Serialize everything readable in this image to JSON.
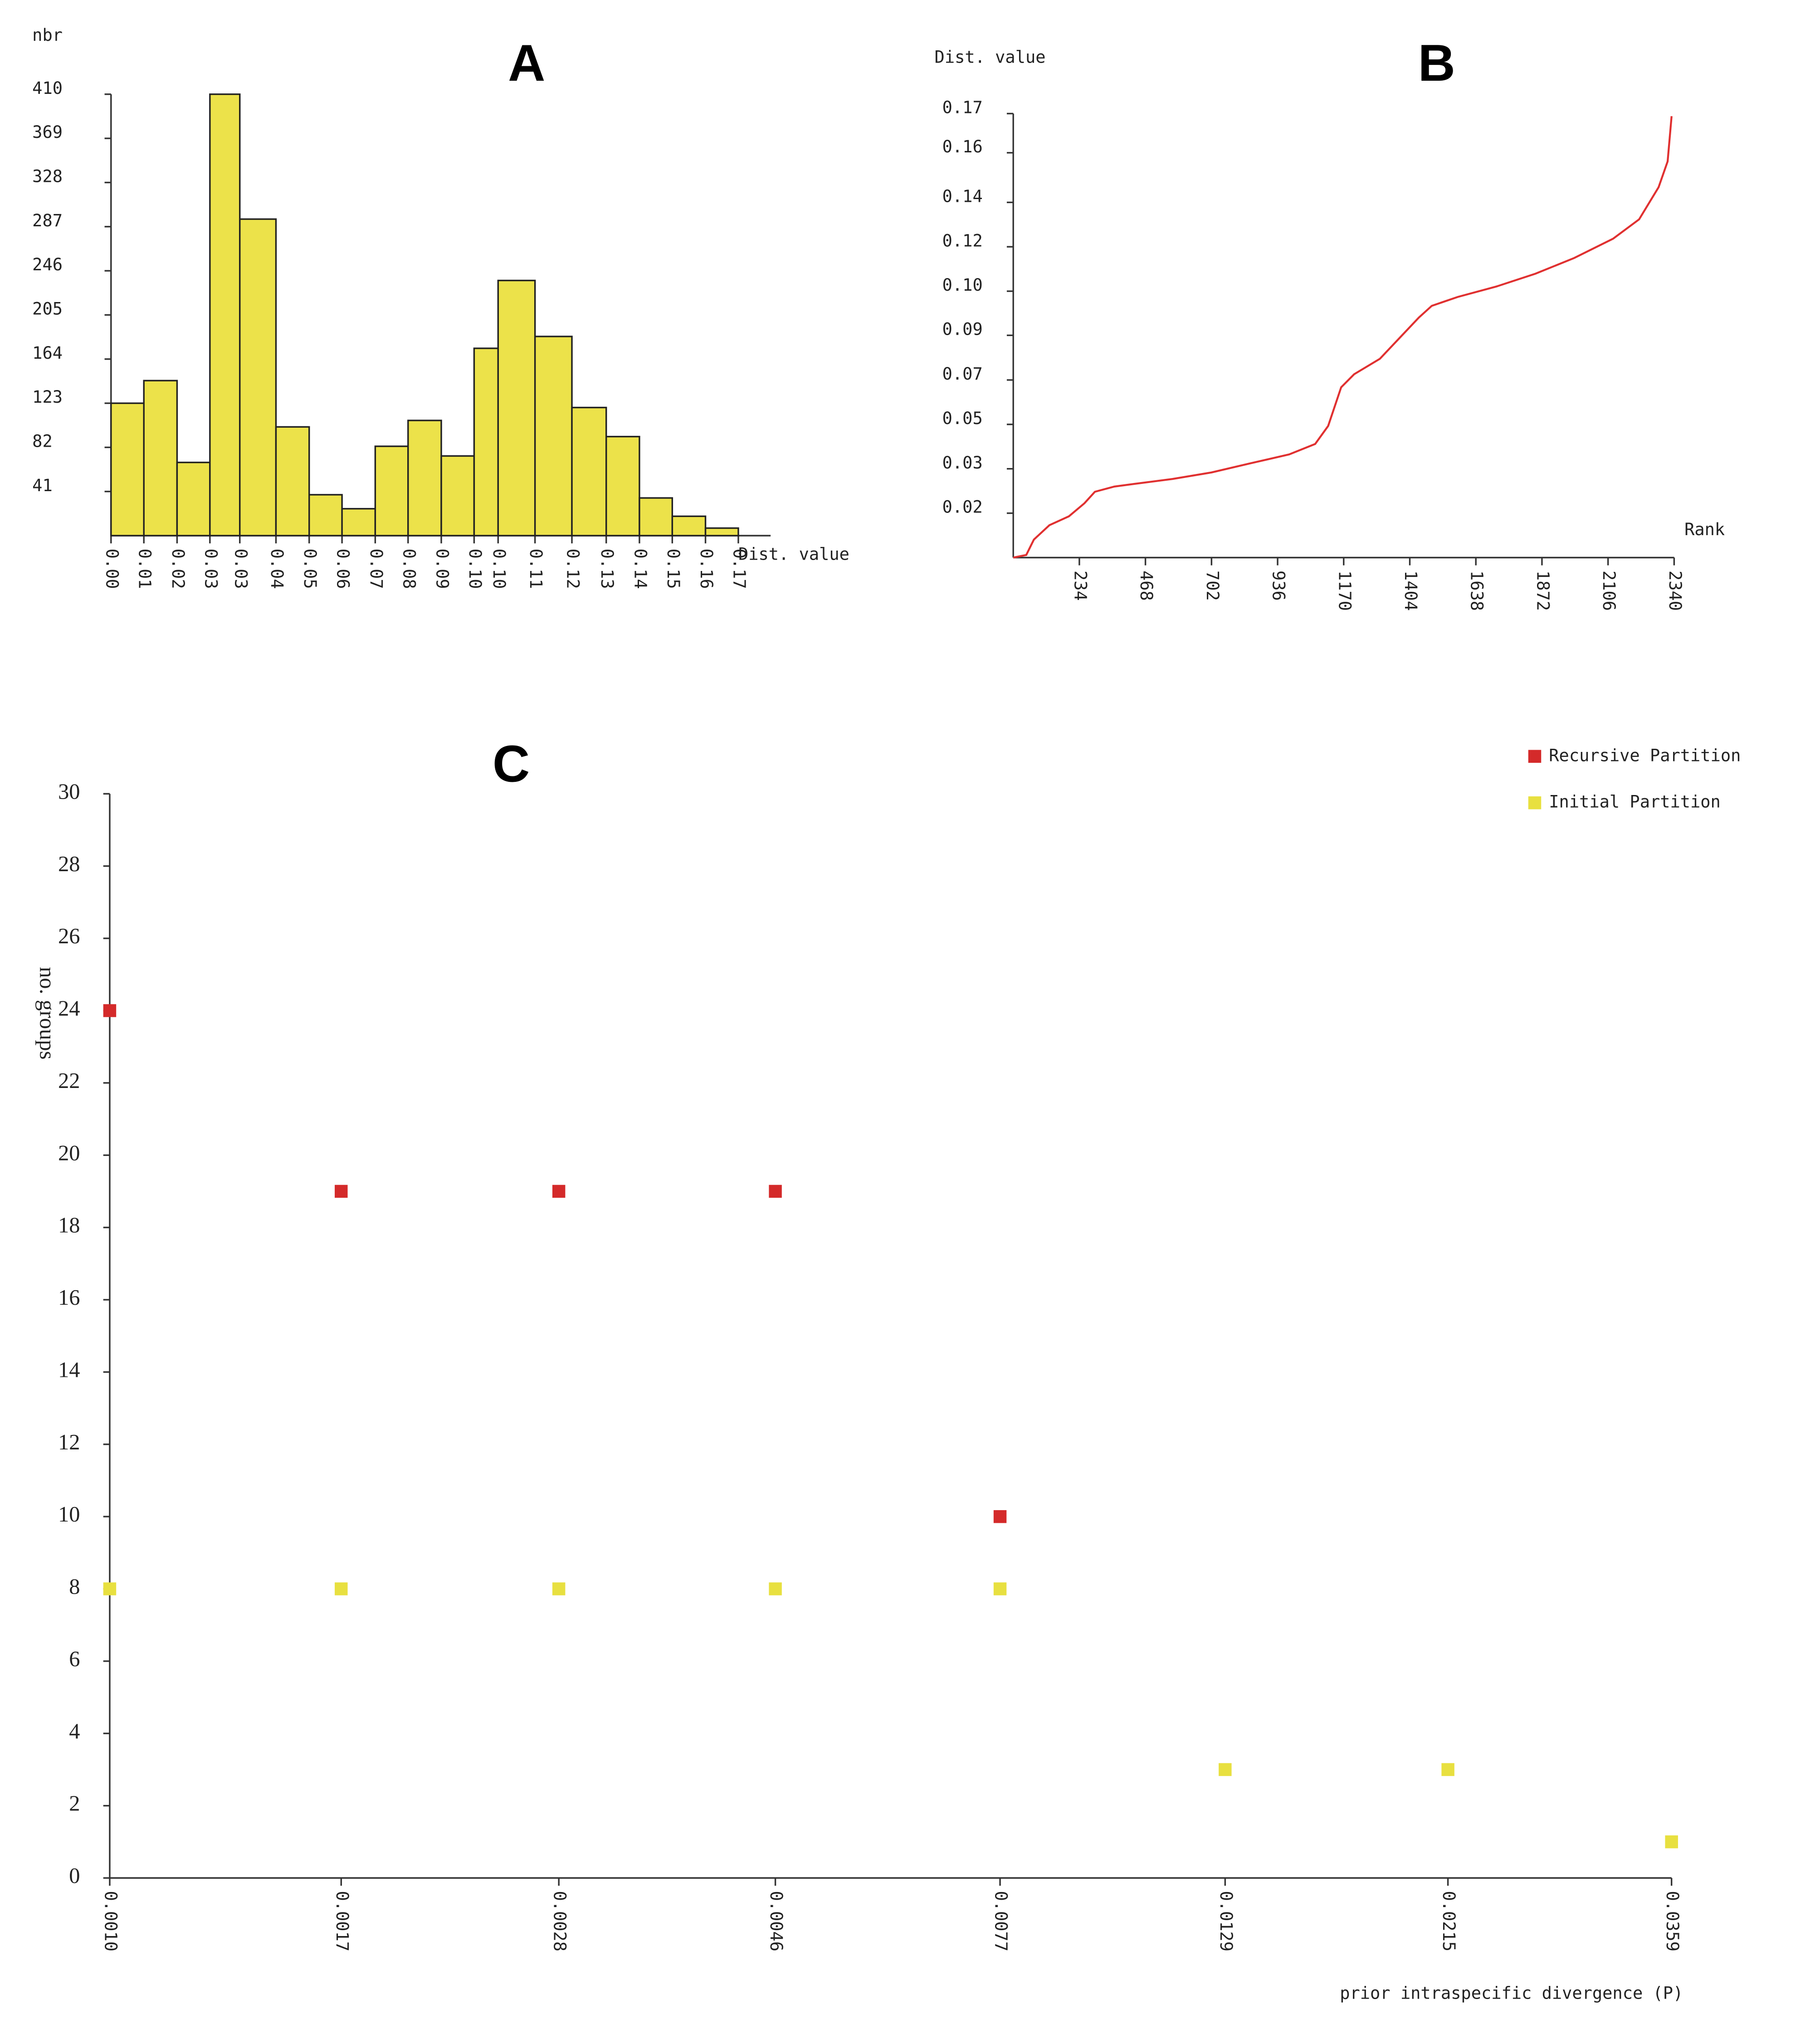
{
  "chart_data": [
    {
      "type": "histogram",
      "title": "A",
      "ylabel": "nbr",
      "xlabel": "Dist. value",
      "color": "#ece24a",
      "bins": [
        0,
        0.0089,
        0.0179,
        0.0268,
        0.0349,
        0.0447,
        0.0537,
        0.0626,
        0.0716,
        0.0805,
        0.0895,
        0.0984,
        0.1049,
        0.1149,
        0.1249,
        0.1342,
        0.1432,
        0.1521,
        0.1611,
        0.17
      ],
      "values": [
        123,
        144,
        68,
        410,
        294,
        101,
        38,
        25,
        83,
        107,
        74,
        174,
        237,
        185,
        119,
        92,
        35,
        18,
        7
      ],
      "xlim": [
        0,
        0.17
      ],
      "xticks": [
        {
          "value": 0,
          "label": "0.00"
        },
        {
          "value": 0.0089,
          "label": "0.01"
        },
        {
          "value": 0.0179,
          "label": "0.02"
        },
        {
          "value": 0.0268,
          "label": "0.03"
        },
        {
          "value": 0.0349,
          "label": "0.03"
        },
        {
          "value": 0.0447,
          "label": "0.04"
        },
        {
          "value": 0.0537,
          "label": "0.05"
        },
        {
          "value": 0.0626,
          "label": "0.06"
        },
        {
          "value": 0.0716,
          "label": "0.07"
        },
        {
          "value": 0.0805,
          "label": "0.08"
        },
        {
          "value": 0.0895,
          "label": "0.09"
        },
        {
          "value": 0.0984,
          "label": "0.10"
        },
        {
          "value": 0.1049,
          "label": "0.10"
        },
        {
          "value": 0.1149,
          "label": "0.11"
        },
        {
          "value": 0.1249,
          "label": "0.12"
        },
        {
          "value": 0.1342,
          "label": "0.13"
        },
        {
          "value": 0.1432,
          "label": "0.14"
        },
        {
          "value": 0.1521,
          "label": "0.15"
        },
        {
          "value": 0.1611,
          "label": "0.16"
        },
        {
          "value": 0.17,
          "label": "0.17"
        }
      ],
      "ylim": [
        0,
        410
      ],
      "yticks": [
        41,
        82,
        123,
        164,
        205,
        246,
        287,
        328,
        369,
        410
      ]
    },
    {
      "type": "line",
      "title": "B",
      "ylabel": "Dist. value",
      "xlabel": "Rank",
      "color": "#e03030",
      "x": [
        0,
        46,
        73,
        128,
        197,
        252,
        289,
        358,
        427,
        564,
        702,
        840,
        977,
        1069,
        1115,
        1161,
        1207,
        1298,
        1367,
        1436,
        1482,
        1574,
        1711,
        1849,
        1986,
        2124,
        2216,
        2285,
        2317,
        2331
      ],
      "values": [
        0,
        0.001,
        0.0069,
        0.0124,
        0.0158,
        0.0208,
        0.0252,
        0.0272,
        0.0282,
        0.0301,
        0.0326,
        0.0361,
        0.0395,
        0.0435,
        0.0504,
        0.0652,
        0.0702,
        0.0761,
        0.084,
        0.0919,
        0.0964,
        0.0998,
        0.1038,
        0.1087,
        0.1147,
        0.1221,
        0.1295,
        0.1418,
        0.1517,
        0.169
      ],
      "xlim": [
        0,
        2340
      ],
      "xticks": [
        234,
        468,
        702,
        936,
        1170,
        1404,
        1638,
        1872,
        2106,
        2340
      ],
      "ylim": [
        0,
        0.17
      ],
      "yticks": [
        {
          "value": 0.017,
          "label": "0.02"
        },
        {
          "value": 0.034,
          "label": "0.03"
        },
        {
          "value": 0.051,
          "label": "0.05"
        },
        {
          "value": 0.068,
          "label": "0.07"
        },
        {
          "value": 0.0851,
          "label": "0.09"
        },
        {
          "value": 0.102,
          "label": "0.10"
        },
        {
          "value": 0.119,
          "label": "0.12"
        },
        {
          "value": 0.136,
          "label": "0.14"
        },
        {
          "value": 0.155,
          "label": "0.16"
        },
        {
          "value": 0.17,
          "label": "0.17"
        }
      ]
    },
    {
      "type": "scatter",
      "title": "C",
      "ylabel": "no. groups",
      "xlabel": "prior intraspecific divergence (P)",
      "xscale": "log",
      "legend": "top-right",
      "series": [
        {
          "name": "Recursive Partition",
          "color": "#d42a2a",
          "x": [
            0.001,
            0.0017,
            0.0028,
            0.0046,
            0.0077
          ],
          "values": [
            24,
            19,
            19,
            19,
            10
          ]
        },
        {
          "name": "Initial Partition",
          "color": "#e8e040",
          "x": [
            0.001,
            0.0017,
            0.0028,
            0.0046,
            0.0077,
            0.0129,
            0.0215,
            0.0359
          ],
          "values": [
            8,
            8,
            8,
            8,
            8,
            3,
            3,
            1
          ]
        }
      ],
      "xlim": [
        0.001,
        0.0359
      ],
      "xticks": [
        {
          "value": 0.001,
          "label": "0.0010"
        },
        {
          "value": 0.0017,
          "label": "0.0017"
        },
        {
          "value": 0.0028,
          "label": "0.0028"
        },
        {
          "value": 0.0046,
          "label": "0.0046"
        },
        {
          "value": 0.0077,
          "label": "0.0077"
        },
        {
          "value": 0.0129,
          "label": "0.0129"
        },
        {
          "value": 0.0215,
          "label": "0.0215"
        },
        {
          "value": 0.0359,
          "label": "0.0359"
        }
      ],
      "ylim": [
        0,
        30
      ],
      "yticks": [
        0,
        2,
        4,
        6,
        8,
        10,
        12,
        14,
        16,
        18,
        20,
        22,
        24,
        26,
        28,
        30
      ]
    }
  ]
}
